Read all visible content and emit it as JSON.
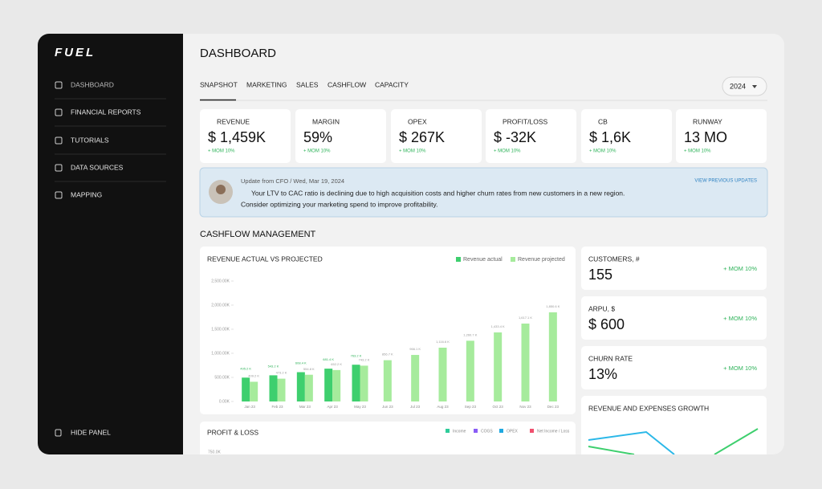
{
  "sidebar": {
    "logo": "FUEL",
    "nav": [
      "DASHBOARD",
      "FINANCIAL REPORTS",
      "TUTORIALS",
      "DATA SOURCES",
      "MAPPING"
    ],
    "footer": "HIDE PANEL"
  },
  "header": {
    "title": "DASHBOARD",
    "tabs": [
      "SNAPSHOT",
      "MARKETING",
      "SALES",
      "CASHFLOW",
      "CAPACITY"
    ],
    "year": "2024"
  },
  "kpis": [
    {
      "label": "REVENUE",
      "value": "$ 1,459K",
      "change": "+ MOM 10%"
    },
    {
      "label": "MARGIN",
      "value": "59%",
      "change": "+ MOM 10%"
    },
    {
      "label": "OPEX",
      "value": "$ 267K",
      "change": "+ MOM 10%"
    },
    {
      "label": "PROFIT/LOSS",
      "value": "$ -32K",
      "change": "+ MOM 10%"
    },
    {
      "label": "CB",
      "value": "$ 1,6K",
      "change": "+ MOM 10%"
    },
    {
      "label": "RUNWAY",
      "value": "13 MO",
      "change": "+ MOM 10%"
    }
  ],
  "update": {
    "meta": "Update from CFO / Wed, Mar 19, 2024",
    "link": "VIEW PREVIOUS UPDATES",
    "lines": [
      "Your LTV to CAC ratio is declining due to high acquisition costs and higher churn rates from new customers in a new region.",
      "Consider optimizing your marketing spend to improve profitability."
    ]
  },
  "section_title": "CASHFLOW MANAGEMENT",
  "revenue_chart": {
    "type": "bar",
    "title": "REVENUE ACTUAL VS PROJECTED",
    "categories": [
      "Jan 23",
      "Feb 23",
      "Mar 23",
      "Apr 23",
      "May 23",
      "Jun 23",
      "Jul 23",
      "Aug 23",
      "Sep 23",
      "Oct 23",
      "Nov 23",
      "Dec 23"
    ],
    "series": [
      {
        "name": "Revenue actual",
        "color": "#3ecf6e",
        "values": [
          495.2,
          543.2,
          608.4,
          681.4,
          763.2,
          null,
          null,
          null,
          null,
          null,
          null,
          null
        ],
        "value_labels": [
          "495.2 K",
          "543.2 K",
          "608.4 K",
          "681.4 K",
          "763.2 K",
          null,
          null,
          null,
          null,
          null,
          null,
          null
        ]
      },
      {
        "name": "Revenue projected",
        "color": "#a6eb9c",
        "values": [
          409.2,
          473.2,
          554.8,
          652.2,
          743.2,
          856.7,
          966.1,
          1116.6,
          1260.7,
          1433.4,
          1617.1,
          1850.6
        ],
        "value_labels": [
          "409.2 K",
          "473.2 K",
          "554.8 K",
          "652.2 K",
          "743.2 K",
          "856.7 K",
          "966.1 K",
          "1,116.6 K",
          "1,260.7 K",
          "1,433.4 K",
          "1,617.1 K",
          "1,850.6 K"
        ]
      }
    ],
    "ylim": [
      0,
      2500
    ],
    "yticks": [
      {
        "value": 0,
        "label": "0.00K"
      },
      {
        "value": 500,
        "label": "500.00K"
      },
      {
        "value": 1000,
        "label": "1,000.00K"
      },
      {
        "value": 1500,
        "label": "1,500.00K"
      },
      {
        "value": 2000,
        "label": "2,000.00K"
      },
      {
        "value": 2500,
        "label": "2,500.00K"
      }
    ],
    "grid": false
  },
  "metrics": [
    {
      "label": "CUSTOMERS, #",
      "value": "155",
      "change": "+ MOM 10%"
    },
    {
      "label": "ARPU, $",
      "value": "$ 600",
      "change": "+ MOM 10%"
    },
    {
      "label": "CHURN RATE",
      "value": "13%",
      "change": "+ MOM 10%"
    }
  ],
  "growth_title": "REVENUE AND EXPENSES GROWTH",
  "profit_loss": {
    "title": "PROFIT & LOSS",
    "legend": [
      {
        "name": "Income",
        "color": "#2ecc9a"
      },
      {
        "name": "COGS",
        "color": "#8a5cf6"
      },
      {
        "name": "OPEX",
        "color": "#1fa8e0"
      },
      {
        "name": "Net Income / Loss",
        "color": "#f0506e"
      }
    ],
    "ytick": "750.0K"
  }
}
